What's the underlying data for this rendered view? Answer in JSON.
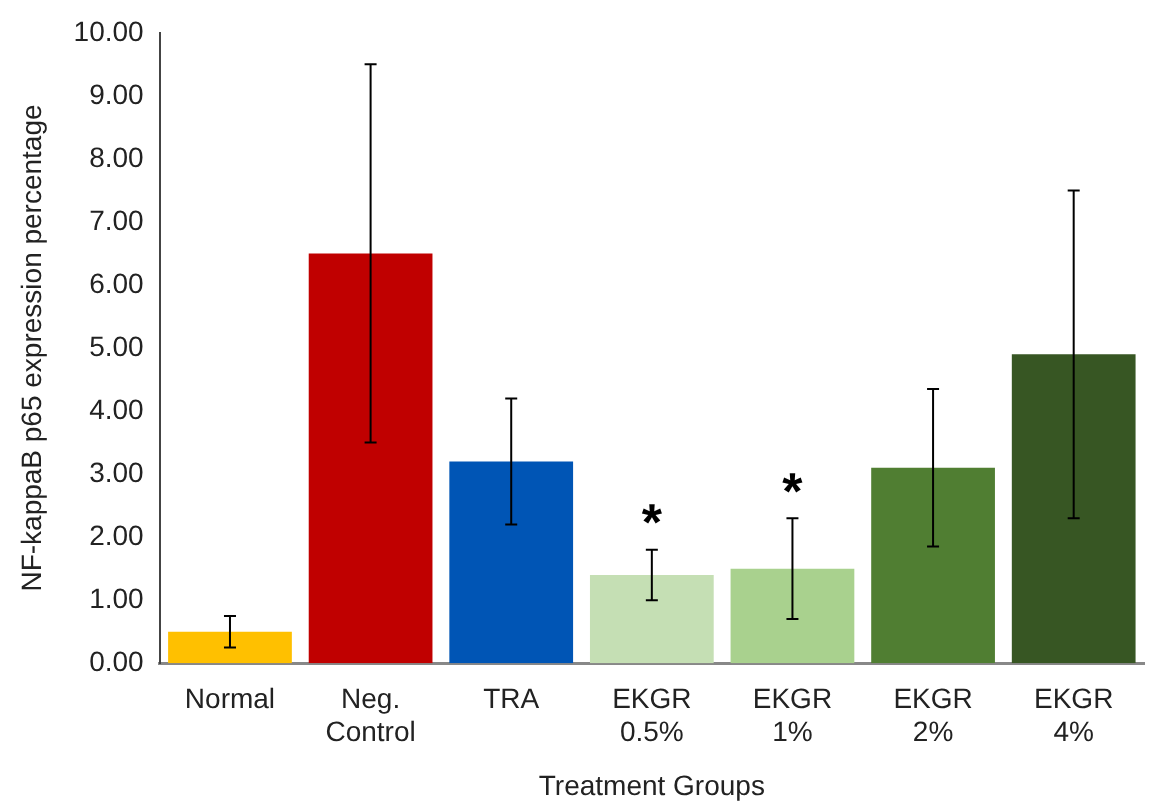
{
  "chart_data": {
    "type": "bar",
    "xlabel": "Treatment Groups",
    "ylabel": "NF-kappaB p65 expression percentage",
    "categories": [
      "Normal",
      "Neg. Control",
      "TRA",
      "EKGR 0.5%",
      "EKGR 1%",
      "EKGR 2%",
      "EKGR 4%"
    ],
    "values": [
      0.5,
      6.5,
      3.2,
      1.4,
      1.5,
      3.1,
      4.9
    ],
    "errors": [
      0.25,
      3.0,
      1.0,
      0.4,
      0.8,
      1.25,
      2.6
    ],
    "colors": [
      "#ffc000",
      "#c00000",
      "#0055b5",
      "#c5dfb4",
      "#a9d18e",
      "#507e32",
      "#375623"
    ],
    "ylim": [
      0,
      10
    ],
    "yticks": [
      {
        "value": 0,
        "label": "0.00"
      },
      {
        "value": 1,
        "label": "1.00"
      },
      {
        "value": 2,
        "label": "2.00"
      },
      {
        "value": 3,
        "label": "3.00"
      },
      {
        "value": 4,
        "label": "4.00"
      },
      {
        "value": 5,
        "label": "5.00"
      },
      {
        "value": 6,
        "label": "6.00"
      },
      {
        "value": 7,
        "label": "7.00"
      },
      {
        "value": 8,
        "label": "8.00"
      },
      {
        "value": 9,
        "label": "9.00"
      },
      {
        "value": 10,
        "label": "10.00"
      }
    ],
    "annotations": [
      {
        "text": "*",
        "x": "EKGR 0.5%",
        "y": 1.8
      },
      {
        "text": "*",
        "x": "EKGR 1%",
        "y": 2.3
      }
    ],
    "grid": false,
    "legend": false
  }
}
